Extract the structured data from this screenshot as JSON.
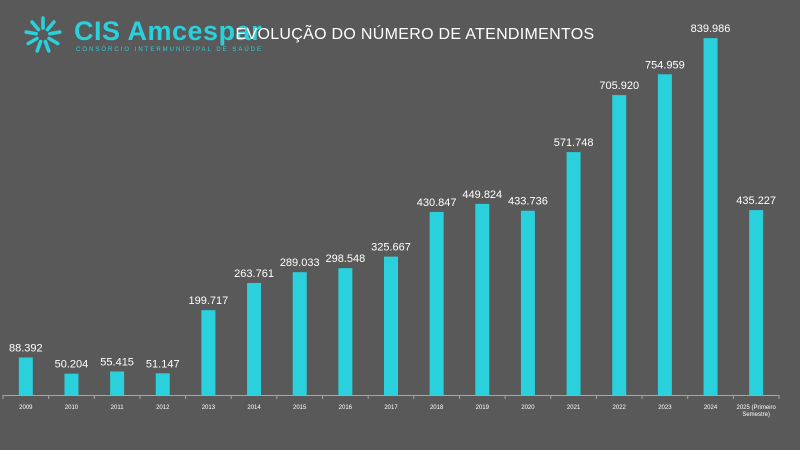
{
  "logo": {
    "name": "CIS Amcespar",
    "tagline": "CONSÓRCIO INTERMUNICIPAL DE SAÚDE",
    "icon": "sunburst-icon",
    "color": "#2ad0dc"
  },
  "chart_data": {
    "type": "bar",
    "title": "EVOLUÇÃO DO NÚMERO DE ATENDIMENTOS",
    "categories": [
      "2009",
      "2010",
      "2011",
      "2012",
      "2013",
      "2014",
      "2015",
      "2016",
      "2017",
      "2018",
      "2019",
      "2020",
      "2021",
      "2022",
      "2023",
      "2024",
      "2025 (Primeiro Semestre)"
    ],
    "values": [
      88392,
      50204,
      55415,
      51147,
      199717,
      263761,
      289033,
      298548,
      325667,
      430847,
      449824,
      433736,
      571748,
      705920,
      754959,
      839986,
      435227
    ],
    "value_labels": [
      "88.392",
      "50.204",
      "55.415",
      "51.147",
      "199.717",
      "263.761",
      "289.033",
      "298.548",
      "325.667",
      "430.847",
      "449.824",
      "433.736",
      "571.748",
      "705.920",
      "754.959",
      "839.986",
      "435.227"
    ],
    "ylim": [
      0,
      845000
    ],
    "grid": false,
    "legend": "none",
    "colors": {
      "bar": "#2ad0dc",
      "background": "#595959",
      "axis": "#a6a6a6"
    }
  }
}
